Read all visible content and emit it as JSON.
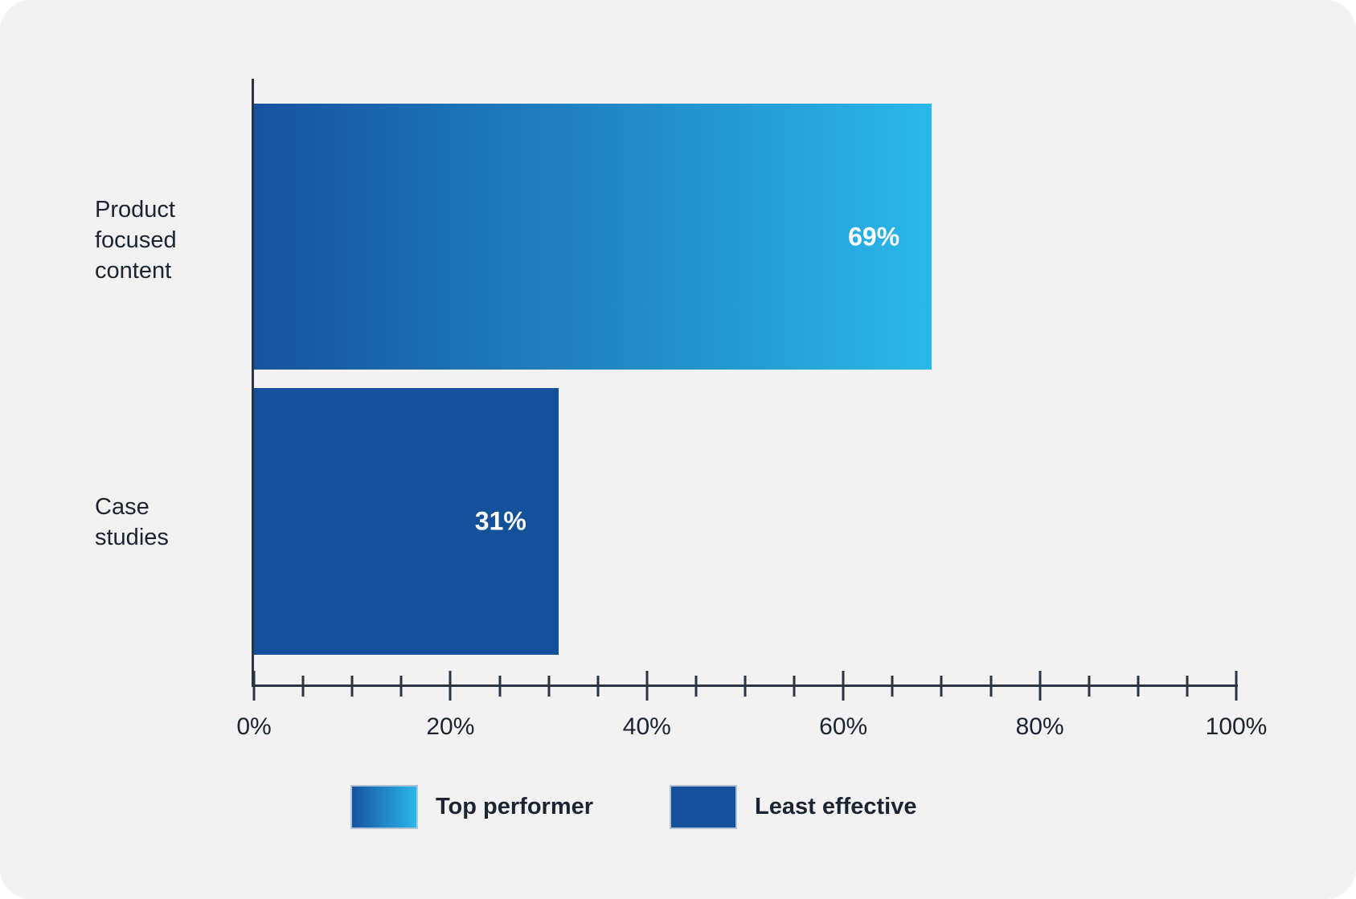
{
  "card": {
    "background_color": "#f2f2f2",
    "page_background_color": "#ffffff"
  },
  "chart_data": {
    "type": "bar",
    "orientation": "horizontal",
    "categories": [
      "Product focused content",
      "Case studies"
    ],
    "category_label_lines": [
      [
        "Product",
        "focused",
        "content"
      ],
      [
        "Case",
        "studies"
      ]
    ],
    "values": [
      69,
      31
    ],
    "value_labels": [
      "69%",
      "31%"
    ],
    "xlim": [
      0,
      100
    ],
    "x_major_tick_step": 20,
    "x_minor_tick_step": 5,
    "x_tick_labels": [
      "0%",
      "20%",
      "40%",
      "60%",
      "80%",
      "100%"
    ],
    "grid": false,
    "legend_position": "bottom",
    "legend": [
      {
        "label": "Top performer",
        "style": "gradient",
        "colors": [
          "#17539f",
          "#2ab7e9"
        ]
      },
      {
        "label": "Least effective",
        "style": "solid",
        "colors": [
          "#15519b"
        ]
      }
    ],
    "series_color_mapping": [
      {
        "category": "Product focused content",
        "legend": "Top performer"
      },
      {
        "category": "Case studies",
        "legend": "Least effective"
      }
    ],
    "text_color": "#1b2433",
    "axis_color": "#2b3442",
    "value_label_color": "#ffffff"
  }
}
